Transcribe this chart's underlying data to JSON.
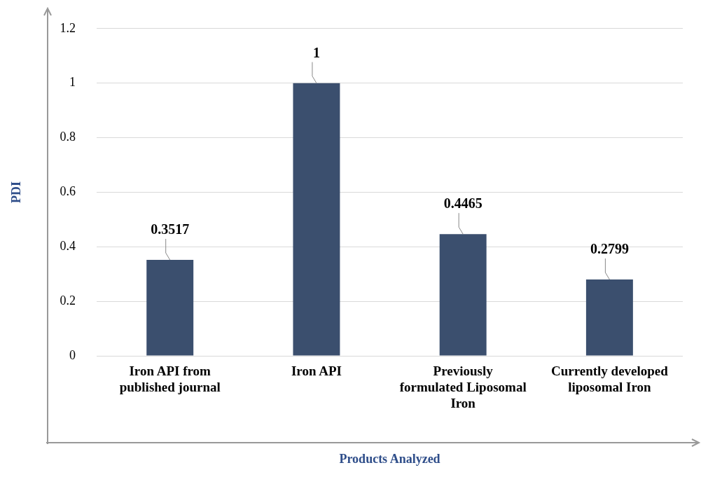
{
  "chart_data": {
    "type": "bar",
    "xlabel": "Products Analyzed",
    "ylabel": "PDI",
    "categories": [
      "Iron API from published journal",
      "Iron API",
      "Previously formulated Liposomal Iron",
      "Currently developed liposomal Iron"
    ],
    "values": [
      0.3517,
      1,
      0.4465,
      0.2799
    ],
    "color": "#3b4f6e",
    "ylim": [
      0,
      1.2
    ],
    "yticks": [
      0,
      0.2,
      0.4,
      0.6,
      0.8,
      1,
      1.2
    ],
    "grid": "y",
    "data_labels": true,
    "legend": false
  }
}
